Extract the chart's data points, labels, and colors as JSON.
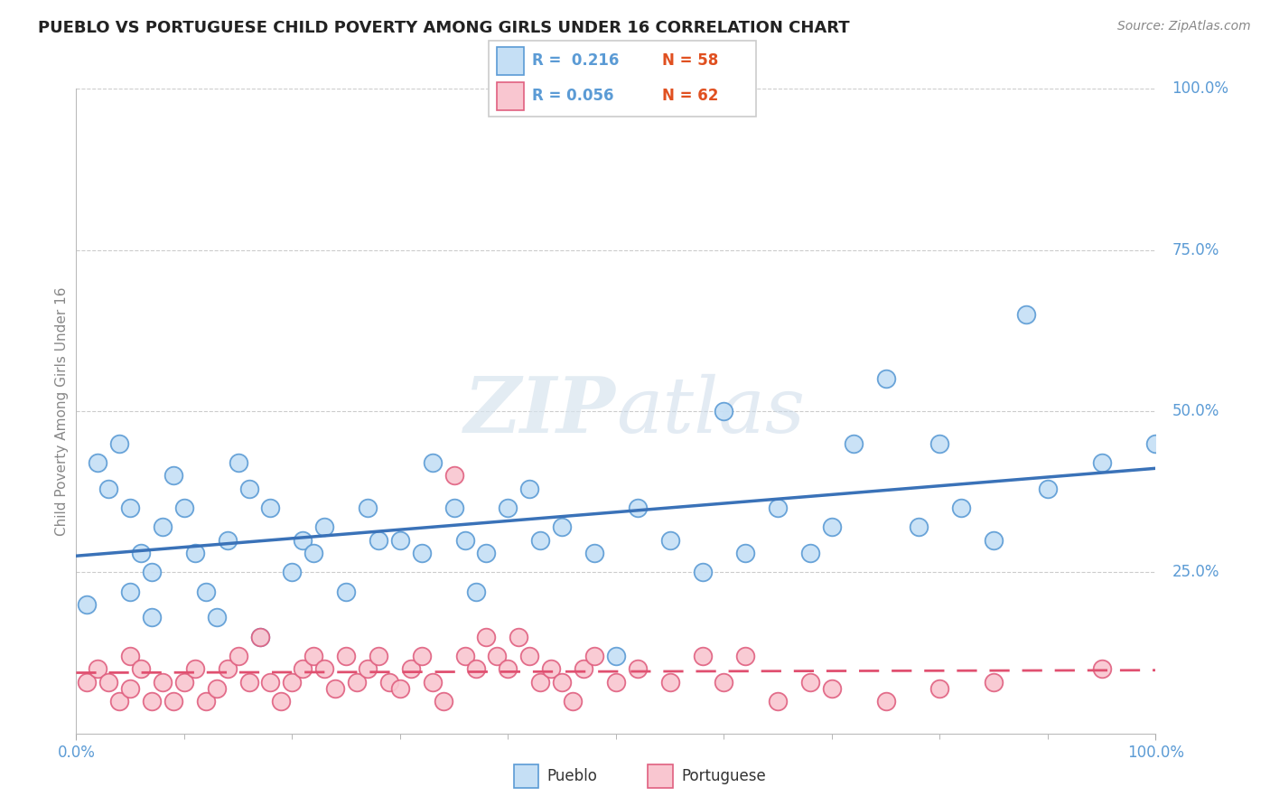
{
  "title": "PUEBLO VS PORTUGUESE CHILD POVERTY AMONG GIRLS UNDER 16 CORRELATION CHART",
  "source_text": "Source: ZipAtlas.com",
  "ylabel": "Child Poverty Among Girls Under 16",
  "pueblo_color": "#c5dff5",
  "pueblo_edge_color": "#5b9bd5",
  "portuguese_color": "#f9c6d0",
  "portuguese_edge_color": "#e06080",
  "pueblo_line_color": "#3a72b8",
  "portuguese_line_color": "#e05070",
  "axis_tick_color": "#5b9bd5",
  "grid_color": "#cccccc",
  "watermark_color": "#e0e8f0",
  "pueblo_r": 0.216,
  "pueblo_n": 58,
  "portuguese_r": 0.056,
  "portuguese_n": 62,
  "pueblo_x": [
    1,
    2,
    3,
    4,
    5,
    5,
    6,
    7,
    7,
    8,
    9,
    10,
    11,
    12,
    13,
    14,
    15,
    16,
    17,
    18,
    20,
    21,
    22,
    23,
    25,
    27,
    28,
    30,
    32,
    33,
    35,
    36,
    37,
    38,
    40,
    42,
    43,
    45,
    48,
    50,
    52,
    55,
    58,
    60,
    62,
    65,
    68,
    70,
    72,
    75,
    78,
    80,
    82,
    85,
    88,
    90,
    95,
    100
  ],
  "pueblo_y": [
    20,
    42,
    38,
    45,
    22,
    35,
    28,
    18,
    25,
    32,
    40,
    35,
    28,
    22,
    18,
    30,
    42,
    38,
    15,
    35,
    25,
    30,
    28,
    32,
    22,
    35,
    30,
    30,
    28,
    42,
    35,
    30,
    22,
    28,
    35,
    38,
    30,
    32,
    28,
    12,
    35,
    30,
    25,
    50,
    28,
    35,
    28,
    32,
    45,
    55,
    32,
    45,
    35,
    30,
    65,
    38,
    42,
    45
  ],
  "portuguese_x": [
    1,
    2,
    3,
    4,
    5,
    5,
    6,
    7,
    8,
    9,
    10,
    11,
    12,
    13,
    14,
    15,
    16,
    17,
    18,
    19,
    20,
    21,
    22,
    23,
    24,
    25,
    26,
    27,
    28,
    29,
    30,
    31,
    32,
    33,
    34,
    35,
    36,
    37,
    38,
    39,
    40,
    41,
    42,
    43,
    44,
    45,
    46,
    47,
    48,
    50,
    52,
    55,
    58,
    60,
    62,
    65,
    68,
    70,
    75,
    80,
    85,
    95
  ],
  "portuguese_y": [
    8,
    10,
    8,
    5,
    12,
    7,
    10,
    5,
    8,
    5,
    8,
    10,
    5,
    7,
    10,
    12,
    8,
    15,
    8,
    5,
    8,
    10,
    12,
    10,
    7,
    12,
    8,
    10,
    12,
    8,
    7,
    10,
    12,
    8,
    5,
    40,
    12,
    10,
    15,
    12,
    10,
    15,
    12,
    8,
    10,
    8,
    5,
    10,
    12,
    8,
    10,
    8,
    12,
    8,
    12,
    5,
    8,
    7,
    5,
    7,
    8,
    10
  ]
}
